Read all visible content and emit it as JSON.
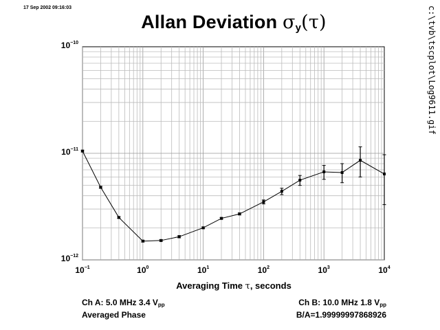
{
  "header": {
    "timestamp": "17 Sep 2002 09:16:03",
    "title_text": "Allan Deviation ",
    "title_sigma": "σ",
    "title_sub": "y",
    "title_paren": "(τ)",
    "side_path": "c:\\tvb\\tscplot\\Log9611.gif"
  },
  "axes": {
    "xlabel_prefix": "Averaging Time ",
    "xlabel_tau": "τ",
    "xlabel_suffix": ", seconds",
    "y_ticks": [
      {
        "base": "10",
        "exp": "−10"
      },
      {
        "base": "10",
        "exp": "−11"
      },
      {
        "base": "10",
        "exp": "−12"
      }
    ],
    "x_ticks": [
      {
        "base": "10",
        "exp": "−1"
      },
      {
        "base": "10",
        "exp": "0"
      },
      {
        "base": "10",
        "exp": "1"
      },
      {
        "base": "10",
        "exp": "2"
      },
      {
        "base": "10",
        "exp": "3"
      },
      {
        "base": "10",
        "exp": "4"
      }
    ]
  },
  "info": {
    "ch_a_prefix": "Ch A: 5.0 MHz 3.4 V",
    "ch_a_sub": "pp",
    "averaged": "Averaged Phase",
    "ch_b_prefix": "Ch B: 10.0 MHz 1.8 V",
    "ch_b_sub": "pp",
    "ratio": "B/A=1.99999997868926"
  },
  "chart_data": {
    "type": "line",
    "title": "Allan Deviation σy(τ)",
    "xlabel": "Averaging Time τ, seconds",
    "ylabel": "",
    "x_scale": "log",
    "y_scale": "log",
    "xlim": [
      0.1,
      10000
    ],
    "ylim": [
      1e-12,
      1e-10
    ],
    "grid": true,
    "series": [
      {
        "x": [
          0.1,
          0.2,
          0.4,
          1,
          2,
          4,
          10,
          20,
          40,
          100,
          200,
          400,
          1000,
          2000,
          4000,
          10000
        ],
        "y": [
          1.05e-11,
          4.8e-12,
          2.5e-12,
          1.5e-12,
          1.52e-12,
          1.65e-12,
          2e-12,
          2.45e-12,
          2.7e-12,
          3.5e-12,
          4.4e-12,
          5.6e-12,
          6.7e-12,
          6.6e-12,
          8.6e-12,
          6.4e-12
        ],
        "err_low": [
          1.03e-11,
          4.7e-12,
          2.45e-12,
          1.47e-12,
          1.49e-12,
          1.61e-12,
          1.96e-12,
          2.4e-12,
          2.64e-12,
          3.35e-12,
          4.1e-12,
          5e-12,
          5.7e-12,
          5.3e-12,
          6e-12,
          3.3e-12
        ],
        "err_high": [
          1.07e-11,
          4.9e-12,
          2.55e-12,
          1.53e-12,
          1.55e-12,
          1.69e-12,
          2.04e-12,
          2.5e-12,
          2.76e-12,
          3.65e-12,
          4.7e-12,
          6.2e-12,
          7.7e-12,
          8e-12,
          1.15e-11,
          9.7e-12
        ]
      }
    ]
  }
}
